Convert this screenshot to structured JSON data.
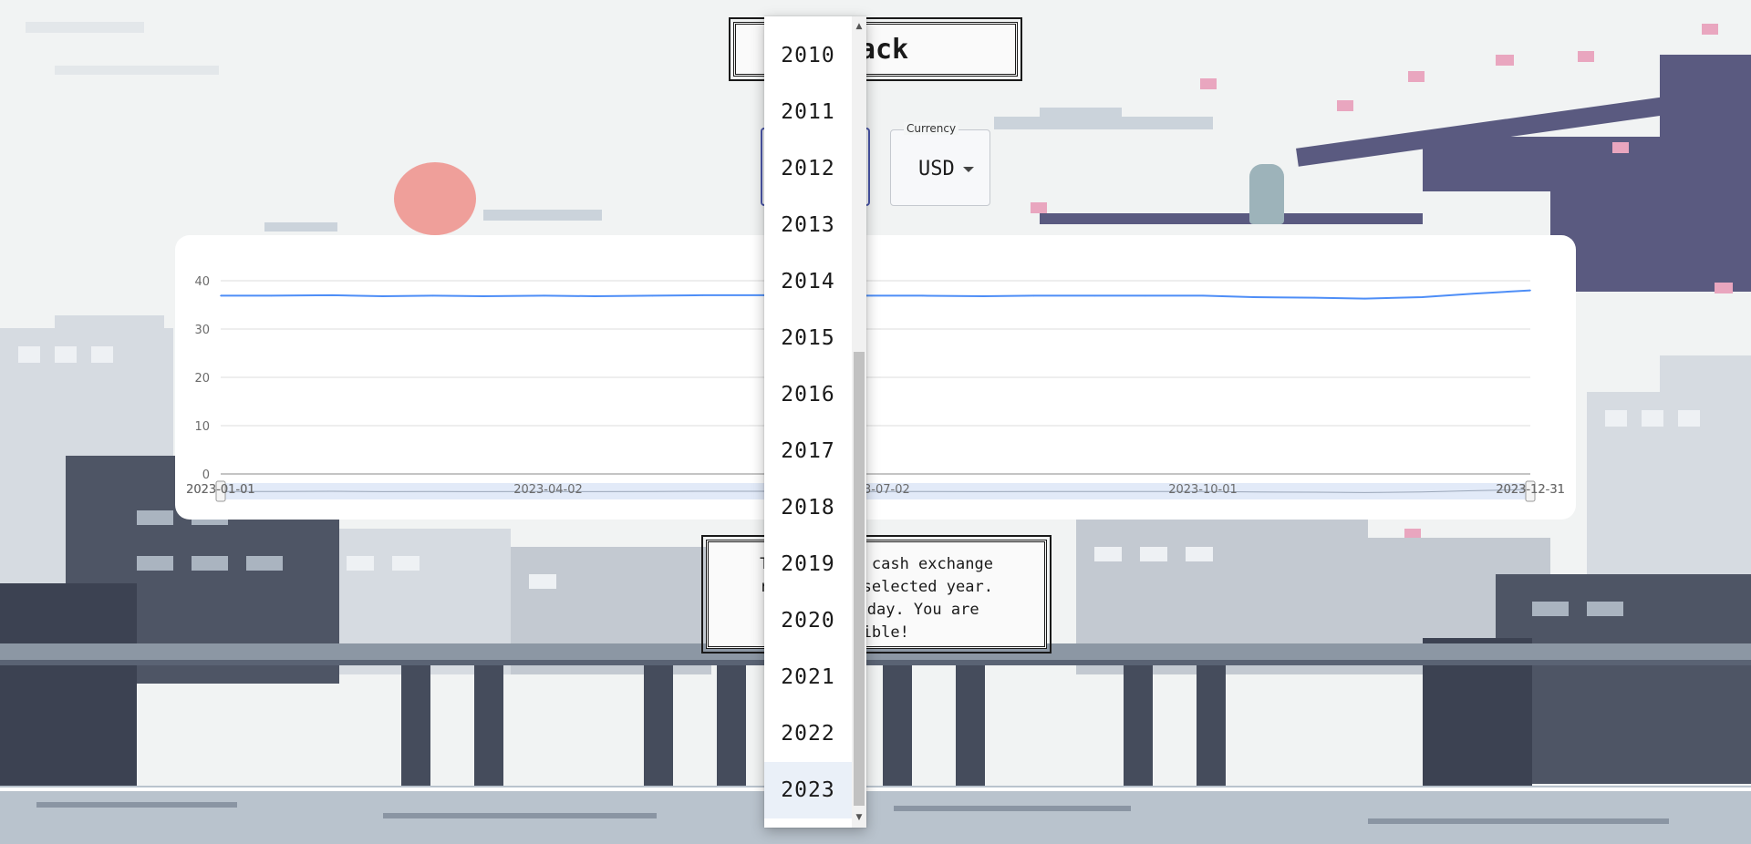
{
  "title": "Back",
  "year_select": {
    "value": "2023"
  },
  "currency": {
    "legend": "Currency",
    "value": "USD"
  },
  "chart_data": {
    "type": "line",
    "title": "",
    "xlabel": "",
    "ylabel": "",
    "ylim": [
      0,
      40
    ],
    "y_ticks": [
      "0",
      "10",
      "20",
      "30",
      "40"
    ],
    "x_tick_labels": [
      "2023-01-01",
      "2023-04-02",
      "2023-07-02",
      "2023-10-01",
      "2023-12-31"
    ],
    "slider_labels": {
      "start": "2023-01-01",
      "end": "2023-12-31"
    },
    "grid": true,
    "series": [
      {
        "color": "#4e8ef7",
        "x": [
          "2023-01-01",
          "2023-01-15",
          "2023-02-01",
          "2023-02-15",
          "2023-03-01",
          "2023-03-15",
          "2023-04-01",
          "2023-04-15",
          "2023-05-01",
          "2023-05-15",
          "2023-06-01",
          "2023-06-15",
          "2023-07-01",
          "2023-07-15",
          "2023-08-01",
          "2023-08-15",
          "2023-09-01",
          "2023-09-15",
          "2023-10-01",
          "2023-10-15",
          "2023-11-01",
          "2023-11-15",
          "2023-12-01",
          "2023-12-15",
          "2023-12-31"
        ],
        "values": [
          36.9,
          36.9,
          37.0,
          36.8,
          36.9,
          36.8,
          36.9,
          36.8,
          36.9,
          37.0,
          37.0,
          36.9,
          36.9,
          36.9,
          36.8,
          36.9,
          36.9,
          36.9,
          36.9,
          36.6,
          36.5,
          36.3,
          36.6,
          37.3,
          38.0
        ]
      }
    ]
  },
  "info_text": {
    "line1": "The     NBU cash exchange",
    "line2": "rate    he selected year.",
    "line3": "La      today. You are",
    "line4": "edible!"
  },
  "dropdown": {
    "options": [
      "2010",
      "2011",
      "2012",
      "2013",
      "2014",
      "2015",
      "2016",
      "2017",
      "2018",
      "2019",
      "2020",
      "2021",
      "2022",
      "2023"
    ],
    "selected": "2023",
    "scroll_up": "▲",
    "scroll_down": "▼"
  }
}
